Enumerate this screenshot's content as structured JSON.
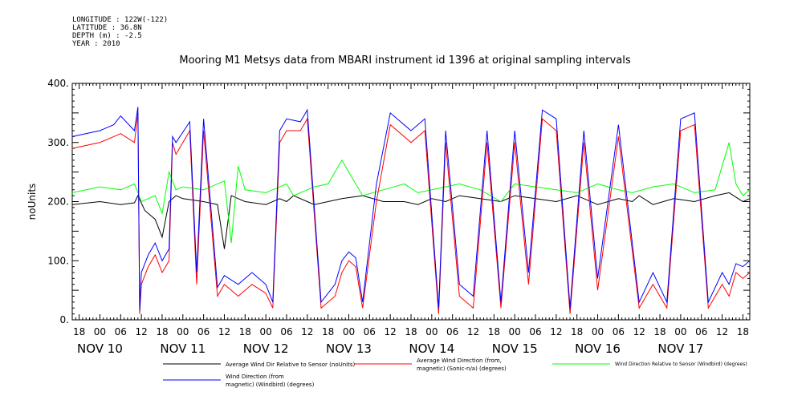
{
  "meta": {
    "longitude": "LONGITUDE : 122W(-122)",
    "latitude": "LATITUDE : 36.8N",
    "depth": "DEPTH (m) : -2.5",
    "year": "YEAR : 2010"
  },
  "chart_data": {
    "type": "line",
    "title": "Mooring M1 Metsys data from MBARI instrument id 1396 at original sampling intervals",
    "ylabel": "noUnits",
    "xlabel": "",
    "ylim": [
      0,
      400
    ],
    "yticks": [
      "0.",
      "100.",
      "200.",
      "300.",
      "400."
    ],
    "xlim_hours": [
      -8,
      188
    ],
    "hour_ticks": [
      "18",
      "00",
      "06",
      "12",
      "18",
      "00",
      "06",
      "12",
      "18",
      "00",
      "06",
      "12",
      "18",
      "00",
      "06",
      "12",
      "18",
      "00",
      "06",
      "12",
      "18",
      "00",
      "06",
      "12",
      "18",
      "00",
      "06",
      "12",
      "18",
      "00",
      "06",
      "12",
      "18"
    ],
    "day_labels": [
      "NOV 10",
      "NOV 11",
      "NOV 12",
      "NOV 13",
      "NOV 14",
      "NOV 15",
      "NOV 16",
      "NOV 17"
    ],
    "grid": false,
    "legend_placement": "bottom",
    "series": [
      {
        "name": "Average Wind Dir Relative to Sensor (noUnits)",
        "color": "#000000",
        "x": [
          -8,
          0,
          6,
          10,
          11,
          13,
          16,
          18,
          20,
          22,
          24,
          30,
          34,
          36,
          38,
          40,
          42,
          48,
          52,
          54,
          56,
          60,
          62,
          66,
          70,
          76,
          82,
          88,
          92,
          96,
          100,
          104,
          110,
          116,
          120,
          126,
          132,
          138,
          144,
          150,
          154,
          156,
          160,
          166,
          172,
          178,
          182,
          186,
          188
        ],
        "values": [
          195,
          200,
          195,
          198,
          210,
          185,
          170,
          140,
          200,
          210,
          205,
          200,
          195,
          120,
          210,
          205,
          200,
          195,
          205,
          200,
          210,
          200,
          195,
          200,
          205,
          210,
          200,
          200,
          195,
          205,
          200,
          210,
          205,
          200,
          210,
          205,
          200,
          210,
          195,
          205,
          200,
          210,
          195,
          205,
          200,
          210,
          215,
          200,
          205
        ]
      },
      {
        "name": "Average Wind Direction (from, magnetic) (Sonic-n/a) (degrees)",
        "color": "#ff0000",
        "x": [
          -8,
          0,
          4,
          6,
          10,
          11,
          11.5,
          12,
          14,
          16,
          18,
          20,
          21,
          22,
          26,
          28,
          30,
          34,
          36,
          40,
          42,
          44,
          48,
          50,
          52,
          54,
          58,
          60,
          64,
          68,
          70,
          72,
          74,
          76,
          80,
          84,
          90,
          94,
          98,
          100,
          104,
          108,
          112,
          116,
          120,
          124,
          128,
          132,
          136,
          140,
          144,
          150,
          156,
          160,
          164,
          168,
          172,
          176,
          180,
          182,
          184,
          186,
          188
        ],
        "values": [
          290,
          300,
          310,
          315,
          300,
          350,
          10,
          60,
          90,
          110,
          80,
          100,
          300,
          280,
          320,
          60,
          320,
          40,
          60,
          40,
          50,
          60,
          45,
          20,
          300,
          320,
          320,
          340,
          20,
          40,
          80,
          100,
          90,
          20,
          200,
          330,
          300,
          320,
          10,
          300,
          40,
          20,
          300,
          20,
          300,
          60,
          340,
          320,
          10,
          300,
          50,
          310,
          20,
          60,
          20,
          320,
          330,
          20,
          60,
          40,
          80,
          70,
          80
        ]
      },
      {
        "name": "Wind Direction Relative to Sensor (Windbird) (degrees)",
        "color": "#00ff00",
        "x": [
          -8,
          0,
          6,
          10,
          12,
          16,
          18,
          20,
          22,
          24,
          30,
          36,
          38,
          40,
          42,
          48,
          54,
          56,
          60,
          62,
          66,
          70,
          76,
          82,
          88,
          92,
          96,
          100,
          104,
          110,
          116,
          120,
          126,
          132,
          138,
          144,
          150,
          154,
          160,
          166,
          172,
          178,
          182,
          184,
          186,
          188
        ],
        "values": [
          215,
          225,
          220,
          230,
          200,
          210,
          180,
          250,
          220,
          225,
          220,
          235,
          130,
          260,
          220,
          215,
          230,
          210,
          220,
          225,
          230,
          270,
          210,
          220,
          230,
          215,
          220,
          225,
          230,
          220,
          200,
          230,
          225,
          220,
          215,
          230,
          220,
          215,
          225,
          230,
          215,
          220,
          300,
          230,
          210,
          220
        ]
      },
      {
        "name": "Wind Direction (from, magnetic) (Windbird) (degrees)",
        "color": "#0000ff",
        "x": [
          -8,
          0,
          4,
          6,
          10,
          11,
          11.5,
          12,
          14,
          16,
          18,
          20,
          21,
          22,
          26,
          28,
          30,
          34,
          36,
          40,
          42,
          44,
          48,
          50,
          52,
          54,
          58,
          60,
          64,
          68,
          70,
          72,
          74,
          76,
          80,
          84,
          90,
          94,
          98,
          100,
          104,
          108,
          112,
          116,
          120,
          124,
          128,
          132,
          136,
          140,
          144,
          150,
          156,
          160,
          164,
          168,
          172,
          176,
          180,
          182,
          184,
          186,
          188
        ],
        "values": [
          310,
          320,
          330,
          345,
          320,
          360,
          15,
          80,
          110,
          130,
          100,
          120,
          310,
          300,
          335,
          80,
          340,
          55,
          75,
          60,
          70,
          80,
          60,
          30,
          320,
          340,
          335,
          355,
          30,
          60,
          100,
          115,
          105,
          30,
          230,
          350,
          320,
          340,
          20,
          320,
          60,
          40,
          320,
          30,
          320,
          80,
          355,
          340,
          20,
          320,
          70,
          330,
          30,
          80,
          30,
          340,
          350,
          30,
          80,
          60,
          95,
          90,
          100
        ]
      }
    ],
    "legend": [
      {
        "label": "Average Wind Dir Relative to Sensor (noUnits)",
        "color": "#000000"
      },
      {
        "label1": "Average Wind Direction (from,",
        "label2": "magnetic) (Sonic-n/a) (degrees)",
        "color": "#ff0000"
      },
      {
        "label": "Wind Direction Relative to Sensor (Windbird) (degrees)",
        "color": "#00ff00"
      },
      {
        "label1": "Wind Direction (from",
        "label2": "magnetic) (Windbird) (degrees)",
        "color": "#0000ff"
      }
    ]
  }
}
